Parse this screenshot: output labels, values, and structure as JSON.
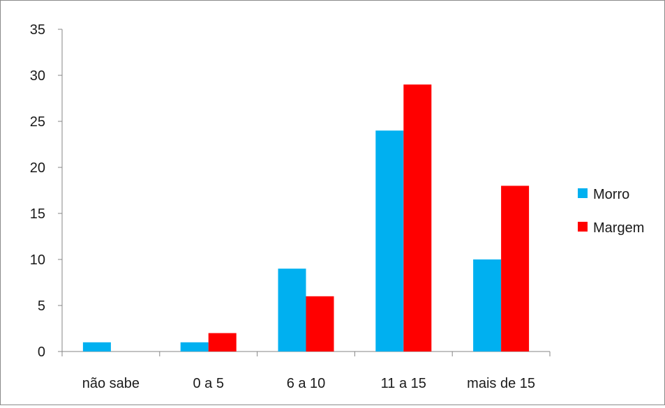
{
  "chart_data": {
    "type": "bar",
    "categories": [
      "não sabe",
      "0 a 5",
      "6 a 10",
      "11 a 15",
      "mais de 15"
    ],
    "series": [
      {
        "name": "Morro",
        "color": "#00B0F0",
        "values": [
          1,
          1,
          9,
          24,
          10
        ]
      },
      {
        "name": "Margem",
        "color": "#FF0000",
        "values": [
          0,
          2,
          6,
          29,
          18
        ]
      }
    ],
    "ylim": [
      0,
      35
    ],
    "yticks": [
      0,
      5,
      10,
      15,
      20,
      25,
      30,
      35
    ],
    "grid": false,
    "legend_position": "right",
    "title": "",
    "xlabel": "",
    "ylabel": ""
  }
}
